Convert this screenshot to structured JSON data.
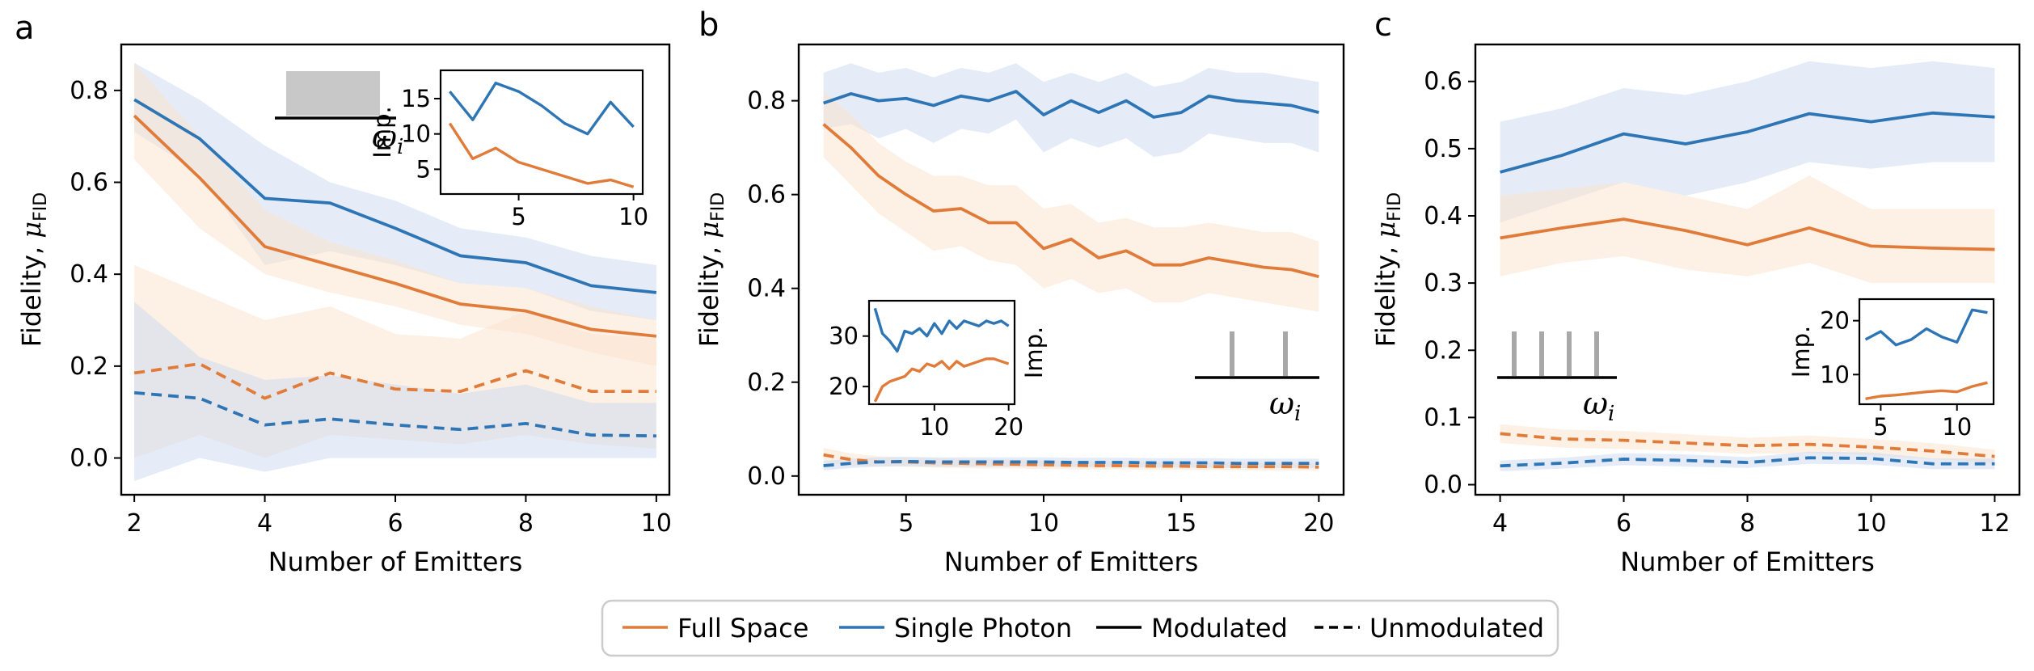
{
  "colors": {
    "full_space": "#e07b39",
    "single_photon": "#2e75b6",
    "full_space_fill": "#fbe3cf",
    "single_photon_fill": "#cfdcf0",
    "spectrum_fill": "#c8c8c8"
  },
  "legend": {
    "full_space": "Full Space",
    "single_photon": "Single Photon",
    "modulated": "Modulated",
    "unmodulated": "Unmodulated"
  },
  "chart_data": [
    {
      "panel": "a",
      "type": "line",
      "xlabel": "Number of Emitters",
      "ylabel_main": "Fidelity, ",
      "ylabel_mu": "μ",
      "ylabel_sub": "FID",
      "xlim": [
        1.8,
        10.2
      ],
      "ylim": [
        -0.08,
        0.9
      ],
      "xticks": [
        2,
        4,
        6,
        8,
        10
      ],
      "yticks": [
        0.0,
        0.2,
        0.4,
        0.6,
        0.8
      ],
      "ytick_labels": [
        "0.0",
        "0.2",
        "0.4",
        "0.6",
        "0.8"
      ],
      "spectrum": "broadband",
      "omega_label": "ω",
      "omega_sub": "i",
      "x": [
        2,
        3,
        4,
        5,
        6,
        7,
        8,
        9,
        10
      ],
      "series": [
        {
          "name": "Single Photon",
          "style": "Modulated",
          "values": [
            0.78,
            0.695,
            0.565,
            0.555,
            0.5,
            0.44,
            0.425,
            0.375,
            0.36
          ],
          "lower": [
            0.71,
            0.62,
            0.42,
            0.45,
            0.42,
            0.38,
            0.37,
            0.32,
            0.3
          ],
          "upper": [
            0.86,
            0.78,
            0.68,
            0.6,
            0.56,
            0.5,
            0.48,
            0.44,
            0.42
          ]
        },
        {
          "name": "Full Space",
          "style": "Modulated",
          "values": [
            0.745,
            0.61,
            0.46,
            0.42,
            0.38,
            0.335,
            0.32,
            0.28,
            0.265
          ],
          "lower": [
            0.65,
            0.5,
            0.4,
            0.36,
            0.33,
            0.29,
            0.27,
            0.23,
            0.2
          ],
          "upper": [
            0.86,
            0.7,
            0.54,
            0.47,
            0.43,
            0.38,
            0.37,
            0.33,
            0.3
          ]
        },
        {
          "name": "Full Space",
          "style": "Unmodulated",
          "values": [
            0.185,
            0.205,
            0.13,
            0.185,
            0.15,
            0.145,
            0.19,
            0.145,
            0.145
          ],
          "lower": [
            0.0,
            0.05,
            0.0,
            0.05,
            0.04,
            0.03,
            0.05,
            0.03,
            0.02
          ],
          "upper": [
            0.42,
            0.36,
            0.3,
            0.33,
            0.27,
            0.26,
            0.32,
            0.27,
            0.26
          ]
        },
        {
          "name": "Single Photon",
          "style": "Unmodulated",
          "values": [
            0.142,
            0.13,
            0.072,
            0.085,
            0.072,
            0.062,
            0.075,
            0.05,
            0.048
          ],
          "lower": [
            -0.05,
            0.0,
            -0.03,
            0.0,
            0.0,
            0.0,
            0.0,
            0.0,
            0.0
          ],
          "upper": [
            0.34,
            0.22,
            0.17,
            0.18,
            0.16,
            0.14,
            0.16,
            0.12,
            0.12
          ]
        }
      ],
      "inset": {
        "ylabel": "Imp.",
        "xlim": [
          1.6,
          10.4
        ],
        "ylim": [
          1.5,
          19
        ],
        "xticks": [
          5,
          10
        ],
        "yticks": [
          5,
          10,
          15
        ],
        "x": [
          2,
          3,
          4,
          5,
          6,
          7,
          8,
          9,
          10
        ],
        "series": [
          {
            "name": "Single Photon",
            "values": [
              16.0,
              12.0,
              17.2,
              16.0,
              14.0,
              11.5,
              10.0,
              14.5,
              11.0
            ]
          },
          {
            "name": "Full Space",
            "values": [
              11.5,
              6.5,
              8.0,
              6.0,
              5.0,
              4.0,
              3.0,
              3.5,
              2.5
            ]
          }
        ]
      }
    },
    {
      "panel": "b",
      "type": "line",
      "xlabel": "Number of Emitters",
      "ylabel_main": "Fidelity, ",
      "ylabel_mu": "μ",
      "ylabel_sub": "FID",
      "xlim": [
        1.1,
        20.9
      ],
      "ylim": [
        -0.04,
        0.92
      ],
      "xticks": [
        5,
        10,
        15,
        20
      ],
      "yticks": [
        0.0,
        0.2,
        0.4,
        0.6,
        0.8
      ],
      "ytick_labels": [
        "0.0",
        "0.2",
        "0.4",
        "0.6",
        "0.8"
      ],
      "spectrum": "sparse-2",
      "omega_label": "ω",
      "omega_sub": "i",
      "x": [
        2,
        3,
        4,
        5,
        6,
        7,
        8,
        9,
        10,
        11,
        12,
        13,
        14,
        15,
        16,
        17,
        18,
        19,
        20
      ],
      "series": [
        {
          "name": "Single Photon",
          "style": "Modulated",
          "values": [
            0.795,
            0.815,
            0.8,
            0.805,
            0.79,
            0.81,
            0.8,
            0.82,
            0.77,
            0.8,
            0.775,
            0.8,
            0.765,
            0.775,
            0.81,
            0.8,
            0.795,
            0.79,
            0.775
          ],
          "lower": [
            0.74,
            0.75,
            0.72,
            0.74,
            0.71,
            0.74,
            0.73,
            0.76,
            0.69,
            0.72,
            0.7,
            0.72,
            0.68,
            0.69,
            0.73,
            0.72,
            0.71,
            0.71,
            0.69
          ],
          "upper": [
            0.86,
            0.88,
            0.86,
            0.87,
            0.85,
            0.87,
            0.86,
            0.88,
            0.84,
            0.86,
            0.84,
            0.86,
            0.83,
            0.84,
            0.87,
            0.86,
            0.86,
            0.85,
            0.84
          ]
        },
        {
          "name": "Full Space",
          "style": "Modulated",
          "values": [
            0.75,
            0.7,
            0.64,
            0.6,
            0.565,
            0.57,
            0.54,
            0.54,
            0.485,
            0.505,
            0.465,
            0.48,
            0.45,
            0.45,
            0.465,
            0.455,
            0.445,
            0.44,
            0.425
          ],
          "lower": [
            0.68,
            0.62,
            0.56,
            0.52,
            0.48,
            0.49,
            0.46,
            0.45,
            0.4,
            0.42,
            0.39,
            0.4,
            0.37,
            0.37,
            0.39,
            0.38,
            0.37,
            0.36,
            0.35
          ],
          "upper": [
            0.82,
            0.77,
            0.71,
            0.67,
            0.64,
            0.64,
            0.62,
            0.62,
            0.57,
            0.58,
            0.54,
            0.55,
            0.53,
            0.53,
            0.54,
            0.53,
            0.52,
            0.52,
            0.5
          ]
        },
        {
          "name": "Full Space",
          "style": "Unmodulated",
          "values": [
            0.045,
            0.035,
            0.03,
            0.03,
            0.028,
            0.027,
            0.026,
            0.025,
            0.024,
            0.023,
            0.022,
            0.022,
            0.021,
            0.021,
            0.02,
            0.02,
            0.02,
            0.02,
            0.019
          ],
          "lower": [
            0.03,
            0.022,
            0.02,
            0.02,
            0.018,
            0.017,
            0.016,
            0.016,
            0.015,
            0.014,
            0.014,
            0.014,
            0.013,
            0.013,
            0.013,
            0.013,
            0.012,
            0.012,
            0.012
          ],
          "upper": [
            0.06,
            0.048,
            0.042,
            0.04,
            0.038,
            0.037,
            0.036,
            0.035,
            0.033,
            0.032,
            0.031,
            0.031,
            0.03,
            0.03,
            0.029,
            0.029,
            0.028,
            0.028,
            0.027
          ]
        },
        {
          "name": "Single Photon",
          "style": "Unmodulated",
          "values": [
            0.022,
            0.027,
            0.03,
            0.031,
            0.03,
            0.03,
            0.03,
            0.03,
            0.03,
            0.029,
            0.029,
            0.029,
            0.028,
            0.028,
            0.028,
            0.027,
            0.027,
            0.027,
            0.027
          ],
          "lower": [
            0.012,
            0.017,
            0.02,
            0.021,
            0.02,
            0.02,
            0.02,
            0.02,
            0.02,
            0.019,
            0.019,
            0.019,
            0.018,
            0.018,
            0.018,
            0.017,
            0.017,
            0.017,
            0.017
          ],
          "upper": [
            0.032,
            0.037,
            0.04,
            0.041,
            0.04,
            0.04,
            0.04,
            0.04,
            0.04,
            0.039,
            0.039,
            0.039,
            0.038,
            0.038,
            0.038,
            0.037,
            0.037,
            0.037,
            0.037
          ]
        }
      ],
      "inset": {
        "ylabel": "Imp.",
        "xlim": [
          1.2,
          20.8
        ],
        "ylim": [
          16.5,
          37
        ],
        "xticks": [
          10,
          20
        ],
        "yticks": [
          20,
          30
        ],
        "x": [
          2,
          3,
          4,
          5,
          6,
          7,
          8,
          9,
          10,
          11,
          12,
          13,
          14,
          15,
          16,
          17,
          18,
          19,
          20
        ],
        "series": [
          {
            "name": "Single Photon",
            "values": [
              35.5,
              30.5,
              29.0,
              27.0,
              31.0,
              30.5,
              31.5,
              30.0,
              32.5,
              30.5,
              33.0,
              31.5,
              33.0,
              32.5,
              32.0,
              33.0,
              32.5,
              33.0,
              32.0
            ]
          },
          {
            "name": "Full Space",
            "values": [
              17.0,
              20.0,
              21.0,
              21.5,
              22.0,
              23.5,
              23.0,
              24.5,
              24.0,
              25.0,
              23.5,
              25.0,
              24.0,
              24.5,
              25.0,
              25.5,
              25.5,
              25.0,
              24.5
            ]
          }
        ]
      }
    },
    {
      "panel": "c",
      "type": "line",
      "xlabel": "Number of Emitters",
      "ylabel_main": "Fidelity, ",
      "ylabel_mu": "μ",
      "ylabel_sub": "FID",
      "xlim": [
        3.6,
        12.4
      ],
      "ylim": [
        -0.015,
        0.655
      ],
      "xticks": [
        4,
        6,
        8,
        10,
        12
      ],
      "yticks": [
        0.0,
        0.1,
        0.2,
        0.3,
        0.4,
        0.5,
        0.6
      ],
      "ytick_labels": [
        "0.0",
        "0.1",
        "0.2",
        "0.3",
        "0.4",
        "0.5",
        "0.6"
      ],
      "spectrum": "sparse-4",
      "omega_label": "ω",
      "omega_sub": "i",
      "x": [
        4,
        5,
        6,
        7,
        8,
        9,
        10,
        11,
        12
      ],
      "series": [
        {
          "name": "Single Photon",
          "style": "Modulated",
          "values": [
            0.465,
            0.49,
            0.522,
            0.507,
            0.525,
            0.552,
            0.54,
            0.553,
            0.547
          ],
          "lower": [
            0.39,
            0.42,
            0.45,
            0.43,
            0.45,
            0.48,
            0.47,
            0.48,
            0.48
          ],
          "upper": [
            0.54,
            0.56,
            0.59,
            0.58,
            0.6,
            0.63,
            0.62,
            0.63,
            0.62
          ]
        },
        {
          "name": "Full Space",
          "style": "Modulated",
          "values": [
            0.367,
            0.382,
            0.395,
            0.378,
            0.357,
            0.382,
            0.355,
            0.352,
            0.35
          ],
          "lower": [
            0.31,
            0.33,
            0.34,
            0.32,
            0.31,
            0.33,
            0.3,
            0.3,
            0.3
          ],
          "upper": [
            0.43,
            0.44,
            0.45,
            0.43,
            0.41,
            0.46,
            0.41,
            0.41,
            0.41
          ]
        },
        {
          "name": "Full Space",
          "style": "Unmodulated",
          "values": [
            0.076,
            0.068,
            0.066,
            0.062,
            0.058,
            0.06,
            0.056,
            0.05,
            0.042
          ],
          "lower": [
            0.062,
            0.055,
            0.053,
            0.05,
            0.046,
            0.047,
            0.044,
            0.038,
            0.032
          ],
          "upper": [
            0.09,
            0.082,
            0.08,
            0.075,
            0.07,
            0.073,
            0.068,
            0.062,
            0.052
          ]
        },
        {
          "name": "Single Photon",
          "style": "Unmodulated",
          "values": [
            0.028,
            0.032,
            0.038,
            0.036,
            0.033,
            0.04,
            0.039,
            0.031,
            0.031
          ],
          "lower": [
            0.02,
            0.024,
            0.029,
            0.027,
            0.025,
            0.031,
            0.03,
            0.023,
            0.023
          ],
          "upper": [
            0.036,
            0.04,
            0.047,
            0.045,
            0.041,
            0.049,
            0.048,
            0.039,
            0.039
          ]
        }
      ],
      "inset": {
        "ylabel": "Imp.",
        "xlim": [
          3.6,
          12.4
        ],
        "ylim": [
          4.5,
          24
        ],
        "xticks": [
          5,
          10
        ],
        "yticks": [
          10,
          20
        ],
        "x": [
          4,
          5,
          6,
          7,
          8,
          9,
          10,
          11,
          12
        ],
        "series": [
          {
            "name": "Single Photon",
            "values": [
              16.5,
              18.0,
              15.5,
              16.5,
              18.5,
              17.0,
              16.0,
              22.0,
              21.5
            ]
          },
          {
            "name": "Full Space",
            "values": [
              5.5,
              6.0,
              6.2,
              6.5,
              6.8,
              7.0,
              6.8,
              7.8,
              8.5
            ]
          }
        ]
      }
    }
  ]
}
